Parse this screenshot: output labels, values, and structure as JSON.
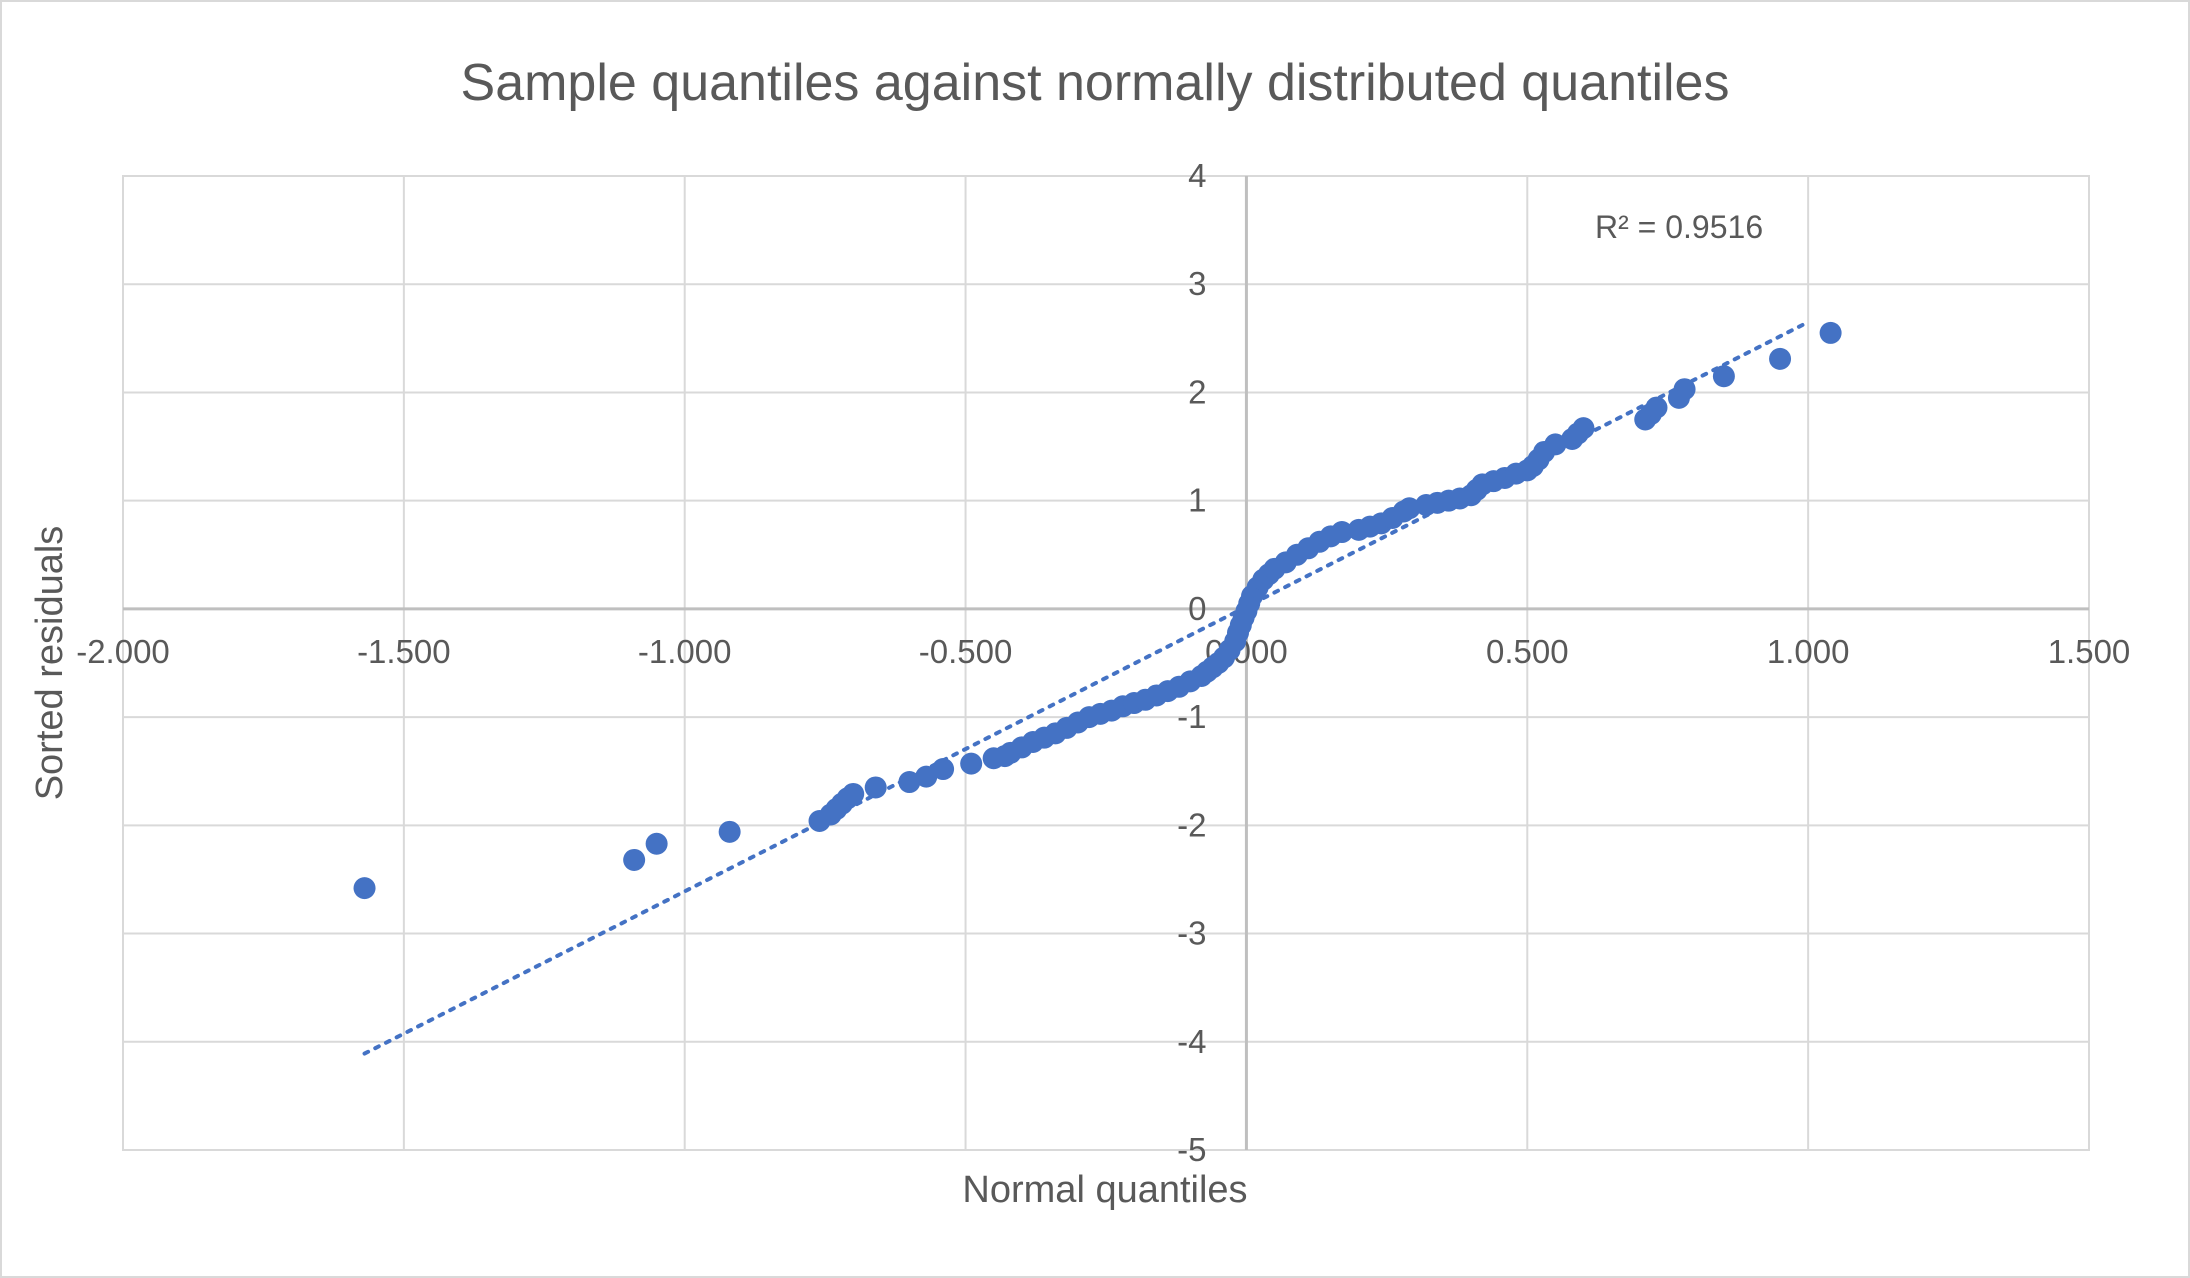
{
  "chart_data": {
    "type": "scatter",
    "title": "Sample quantiles against normally distributed quantiles",
    "xlabel": "Normal quantiles",
    "ylabel": "Sorted residuals",
    "xlim": [
      -2.0,
      1.5
    ],
    "ylim": [
      -5,
      4
    ],
    "x_ticks": [
      -2.0,
      -1.5,
      -1.0,
      -0.5,
      0.0,
      0.5,
      1.0,
      1.5
    ],
    "x_tick_labels": [
      "-2.000",
      "-1.500",
      "-1.000",
      "-0.500",
      "0.000",
      "0.500",
      "1.000",
      "1.500"
    ],
    "y_ticks": [
      4,
      3,
      2,
      1,
      0,
      -1,
      -2,
      -3,
      -4,
      -5
    ],
    "y_tick_labels": [
      "4",
      "3",
      "2",
      "1",
      "0",
      "-1",
      "-2",
      "-3",
      "-4",
      "-5"
    ],
    "grid": true,
    "marker_color": "#4472c4",
    "trendline": {
      "type": "linear",
      "style": "dotted",
      "color": "#4472c4",
      "x_range": [
        -1.57,
        1.0
      ],
      "slope": 2.63,
      "intercept": 0.02,
      "r2_label": "R² = 0.9516"
    },
    "series": [
      {
        "points": [
          [
            -1.57,
            -2.58
          ],
          [
            -1.09,
            -2.32
          ],
          [
            -1.05,
            -2.17
          ],
          [
            -0.92,
            -2.06
          ],
          [
            -0.76,
            -1.96
          ],
          [
            -0.74,
            -1.9
          ],
          [
            -0.73,
            -1.85
          ],
          [
            -0.72,
            -1.8
          ],
          [
            -0.71,
            -1.75
          ],
          [
            -0.7,
            -1.71
          ],
          [
            -0.66,
            -1.65
          ],
          [
            -0.6,
            -1.6
          ],
          [
            -0.57,
            -1.55
          ],
          [
            -0.54,
            -1.48
          ],
          [
            -0.49,
            -1.43
          ],
          [
            -0.45,
            -1.38
          ],
          [
            -0.43,
            -1.36
          ],
          [
            -0.42,
            -1.33
          ],
          [
            -0.4,
            -1.28
          ],
          [
            -0.38,
            -1.23
          ],
          [
            -0.36,
            -1.19
          ],
          [
            -0.34,
            -1.15
          ],
          [
            -0.32,
            -1.1
          ],
          [
            -0.3,
            -1.05
          ],
          [
            -0.28,
            -1.0
          ],
          [
            -0.26,
            -0.97
          ],
          [
            -0.24,
            -0.94
          ],
          [
            -0.22,
            -0.9
          ],
          [
            -0.2,
            -0.87
          ],
          [
            -0.18,
            -0.84
          ],
          [
            -0.16,
            -0.8
          ],
          [
            -0.14,
            -0.76
          ],
          [
            -0.12,
            -0.72
          ],
          [
            -0.1,
            -0.67
          ],
          [
            -0.08,
            -0.62
          ],
          [
            -0.07,
            -0.58
          ],
          [
            -0.06,
            -0.54
          ],
          [
            -0.05,
            -0.5
          ],
          [
            -0.04,
            -0.45
          ],
          [
            -0.03,
            -0.38
          ],
          [
            -0.02,
            -0.3
          ],
          [
            -0.015,
            -0.22
          ],
          [
            -0.01,
            -0.15
          ],
          [
            -0.005,
            -0.08
          ],
          [
            0.0,
            -0.02
          ],
          [
            0.005,
            0.05
          ],
          [
            0.01,
            0.12
          ],
          [
            0.02,
            0.2
          ],
          [
            0.03,
            0.27
          ],
          [
            0.04,
            0.32
          ],
          [
            0.05,
            0.37
          ],
          [
            0.07,
            0.43
          ],
          [
            0.09,
            0.5
          ],
          [
            0.11,
            0.56
          ],
          [
            0.13,
            0.62
          ],
          [
            0.15,
            0.67
          ],
          [
            0.17,
            0.71
          ],
          [
            0.2,
            0.73
          ],
          [
            0.22,
            0.76
          ],
          [
            0.24,
            0.79
          ],
          [
            0.26,
            0.84
          ],
          [
            0.28,
            0.9
          ],
          [
            0.29,
            0.93
          ],
          [
            0.32,
            0.96
          ],
          [
            0.34,
            0.98
          ],
          [
            0.36,
            1.0
          ],
          [
            0.38,
            1.02
          ],
          [
            0.4,
            1.05
          ],
          [
            0.41,
            1.1
          ],
          [
            0.42,
            1.15
          ],
          [
            0.44,
            1.18
          ],
          [
            0.46,
            1.21
          ],
          [
            0.48,
            1.25
          ],
          [
            0.5,
            1.28
          ],
          [
            0.51,
            1.32
          ],
          [
            0.52,
            1.38
          ],
          [
            0.53,
            1.45
          ],
          [
            0.55,
            1.52
          ],
          [
            0.58,
            1.57
          ],
          [
            0.59,
            1.62
          ],
          [
            0.6,
            1.67
          ],
          [
            0.71,
            1.75
          ],
          [
            0.72,
            1.8
          ],
          [
            0.73,
            1.86
          ],
          [
            0.77,
            1.95
          ],
          [
            0.78,
            2.03
          ],
          [
            0.85,
            2.15
          ],
          [
            0.95,
            2.31
          ],
          [
            1.04,
            2.55
          ]
        ]
      }
    ]
  }
}
